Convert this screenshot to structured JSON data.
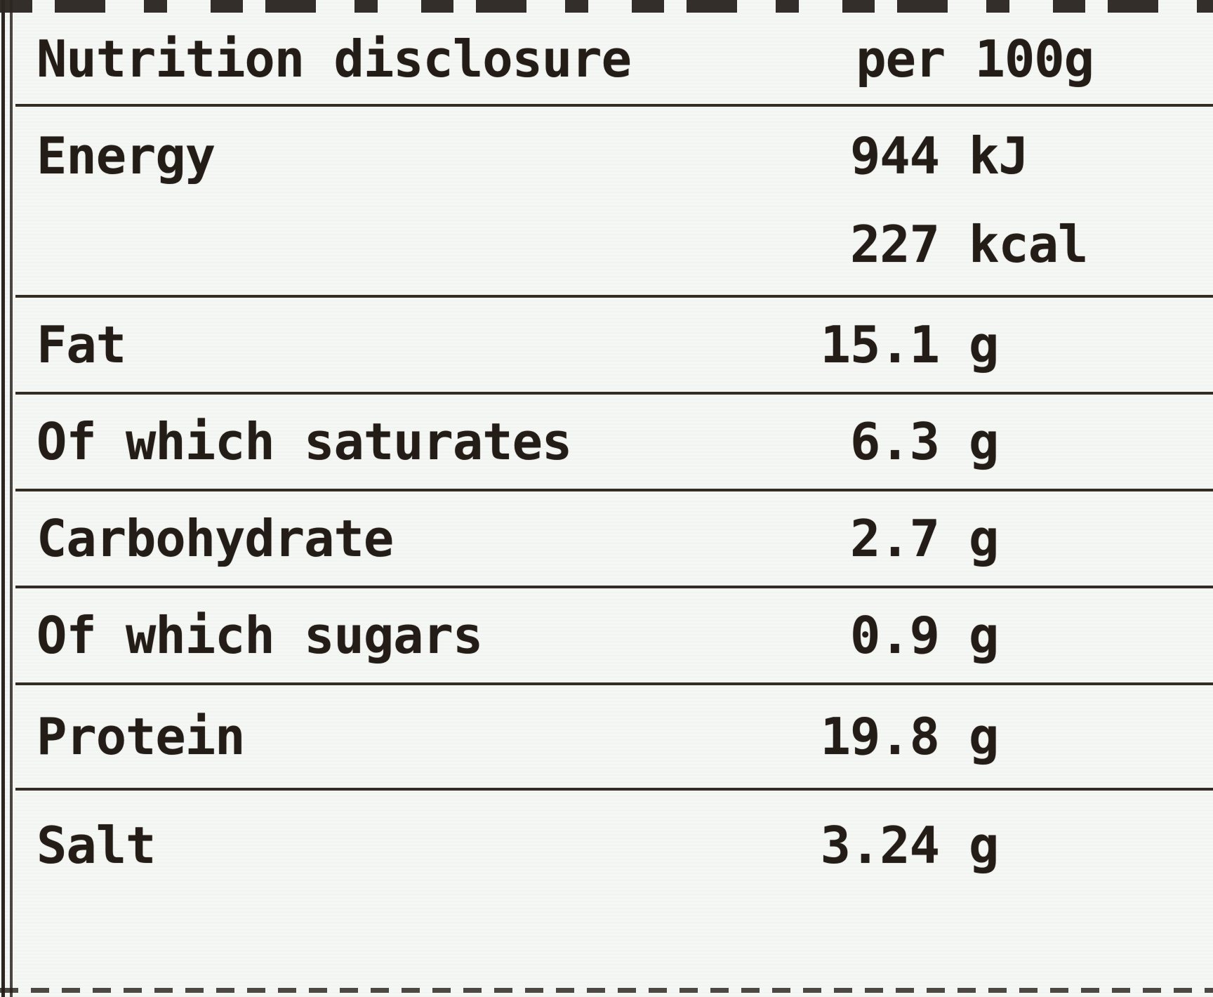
{
  "label": {
    "header": {
      "title": "Nutrition disclosure",
      "per": "per 100g"
    },
    "rows": [
      {
        "label": "Energy",
        "value": "944",
        "unit": "kJ",
        "value2": "227",
        "unit2": "kcal"
      },
      {
        "label": "Fat",
        "value": "15.1",
        "unit": "g"
      },
      {
        "label": "Of which saturates",
        "value": "6.3",
        "unit": "g"
      },
      {
        "label": "Carbohydrate",
        "value": "2.7",
        "unit": "g"
      },
      {
        "label": "Of which sugars",
        "value": "0.9",
        "unit": "g"
      },
      {
        "label": "Protein",
        "value": "19.8",
        "unit": "g"
      },
      {
        "label": "Salt",
        "value": "3.24",
        "unit": "g"
      }
    ],
    "colors": {
      "background": "#f5f7f4",
      "ink": "#241c16",
      "rule": "#332c25"
    }
  }
}
